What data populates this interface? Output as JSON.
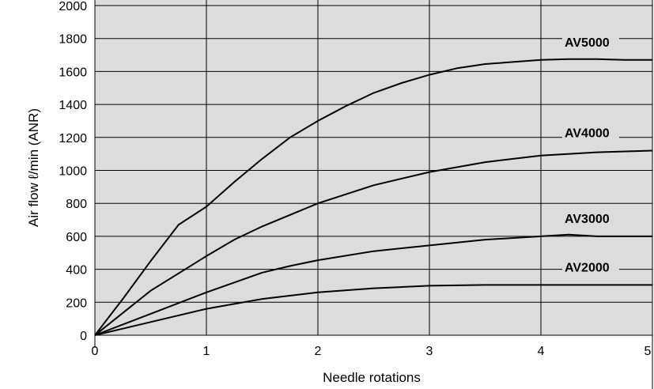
{
  "chart_data": {
    "type": "line",
    "title": "",
    "xlabel": "Needle rotations",
    "ylabel": "Air flow ℓ/min (ANR)",
    "xlim": [
      0,
      5
    ],
    "ylim": [
      0,
      2000
    ],
    "x_ticks": [
      0,
      1,
      2,
      3,
      4,
      5
    ],
    "y_ticks": [
      0,
      200,
      400,
      600,
      800,
      1000,
      1200,
      1400,
      1600,
      1800,
      2000
    ],
    "grid": true,
    "background_color": "#dcdcdc",
    "line_color": "#000000",
    "series": [
      {
        "name": "AV5000",
        "x": [
          0,
          0.25,
          0.5,
          0.75,
          1,
          1.25,
          1.5,
          1.75,
          2,
          2.25,
          2.5,
          2.75,
          3,
          3.25,
          3.5,
          4,
          4.25,
          4.5,
          4.75,
          5
        ],
        "values": [
          0,
          220,
          450,
          670,
          780,
          930,
          1070,
          1200,
          1300,
          1390,
          1470,
          1530,
          1580,
          1620,
          1645,
          1670,
          1675,
          1675,
          1670,
          1670
        ]
      },
      {
        "name": "AV4000",
        "x": [
          0,
          0.5,
          1,
          1.25,
          1.5,
          2,
          2.5,
          3,
          3.5,
          4,
          4.5,
          5
        ],
        "values": [
          0,
          270,
          480,
          580,
          660,
          800,
          910,
          990,
          1050,
          1090,
          1110,
          1120
        ]
      },
      {
        "name": "AV3000",
        "x": [
          0,
          0.5,
          1,
          1.5,
          1.75,
          2,
          2.5,
          3,
          3.5,
          4,
          4.25,
          4.5,
          5
        ],
        "values": [
          0,
          130,
          260,
          380,
          420,
          455,
          510,
          545,
          580,
          600,
          610,
          600,
          600
        ]
      },
      {
        "name": "AV2000",
        "x": [
          0,
          0.5,
          1,
          1.5,
          2,
          2.5,
          3,
          3.5,
          4,
          4.5,
          5
        ],
        "values": [
          0,
          80,
          160,
          220,
          260,
          285,
          300,
          305,
          305,
          305,
          305
        ]
      }
    ]
  }
}
